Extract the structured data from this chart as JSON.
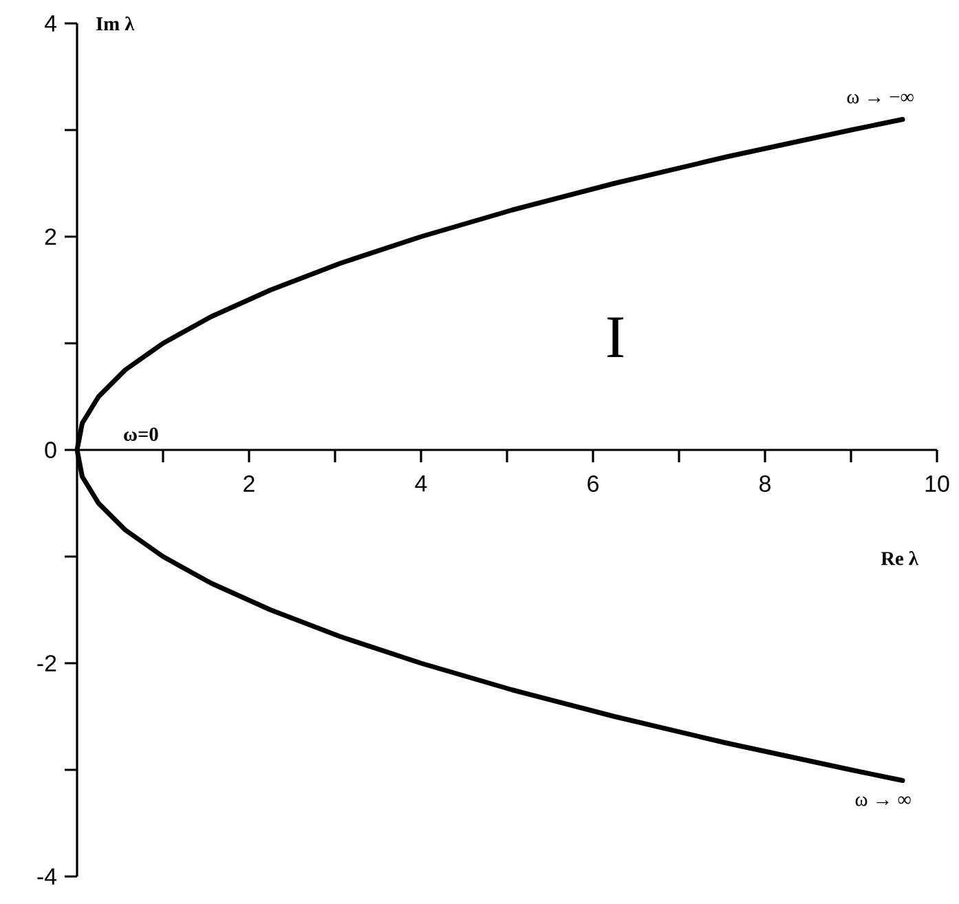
{
  "chart_data": {
    "type": "line",
    "xlabel": "Re λ",
    "ylabel": "Im λ",
    "xlim": [
      0,
      10
    ],
    "ylim": [
      -4,
      4
    ],
    "xticks": [
      {
        "value": 1,
        "label": null
      },
      2,
      {
        "value": 3,
        "label": null
      },
      4,
      {
        "value": 5,
        "label": null
      },
      6,
      {
        "value": 7,
        "label": null
      },
      8,
      {
        "value": 9,
        "label": null
      },
      10
    ],
    "yticks": [
      -4,
      {
        "value": -3,
        "label": null
      },
      -2,
      {
        "value": -1,
        "label": null
      },
      0,
      {
        "value": 1,
        "label": null
      },
      2,
      {
        "value": 3,
        "label": null
      },
      4
    ],
    "series": [
      {
        "color": "#000000",
        "x": [
          9.6,
          9,
          7.56,
          6.25,
          5.06,
          4,
          3.06,
          2.25,
          1.56,
          1,
          0.56,
          0.25,
          0.06,
          0,
          0.06,
          0.25,
          0.56,
          1,
          1.56,
          2.25,
          3.06,
          4,
          5.06,
          6.25,
          7.56,
          9,
          9.6
        ],
        "values": [
          3.1,
          3,
          2.75,
          2.5,
          2.25,
          2,
          1.75,
          1.5,
          1.25,
          1,
          0.75,
          0.5,
          0.25,
          0,
          -0.25,
          -0.5,
          -0.75,
          -1,
          -1.25,
          -1.5,
          -1.75,
          -2,
          -2.25,
          -2.5,
          -2.75,
          -3,
          -3.1
        ]
      }
    ],
    "annotations": [
      "ω=0",
      "ω → −∞",
      "ω → ∞",
      "I"
    ]
  }
}
